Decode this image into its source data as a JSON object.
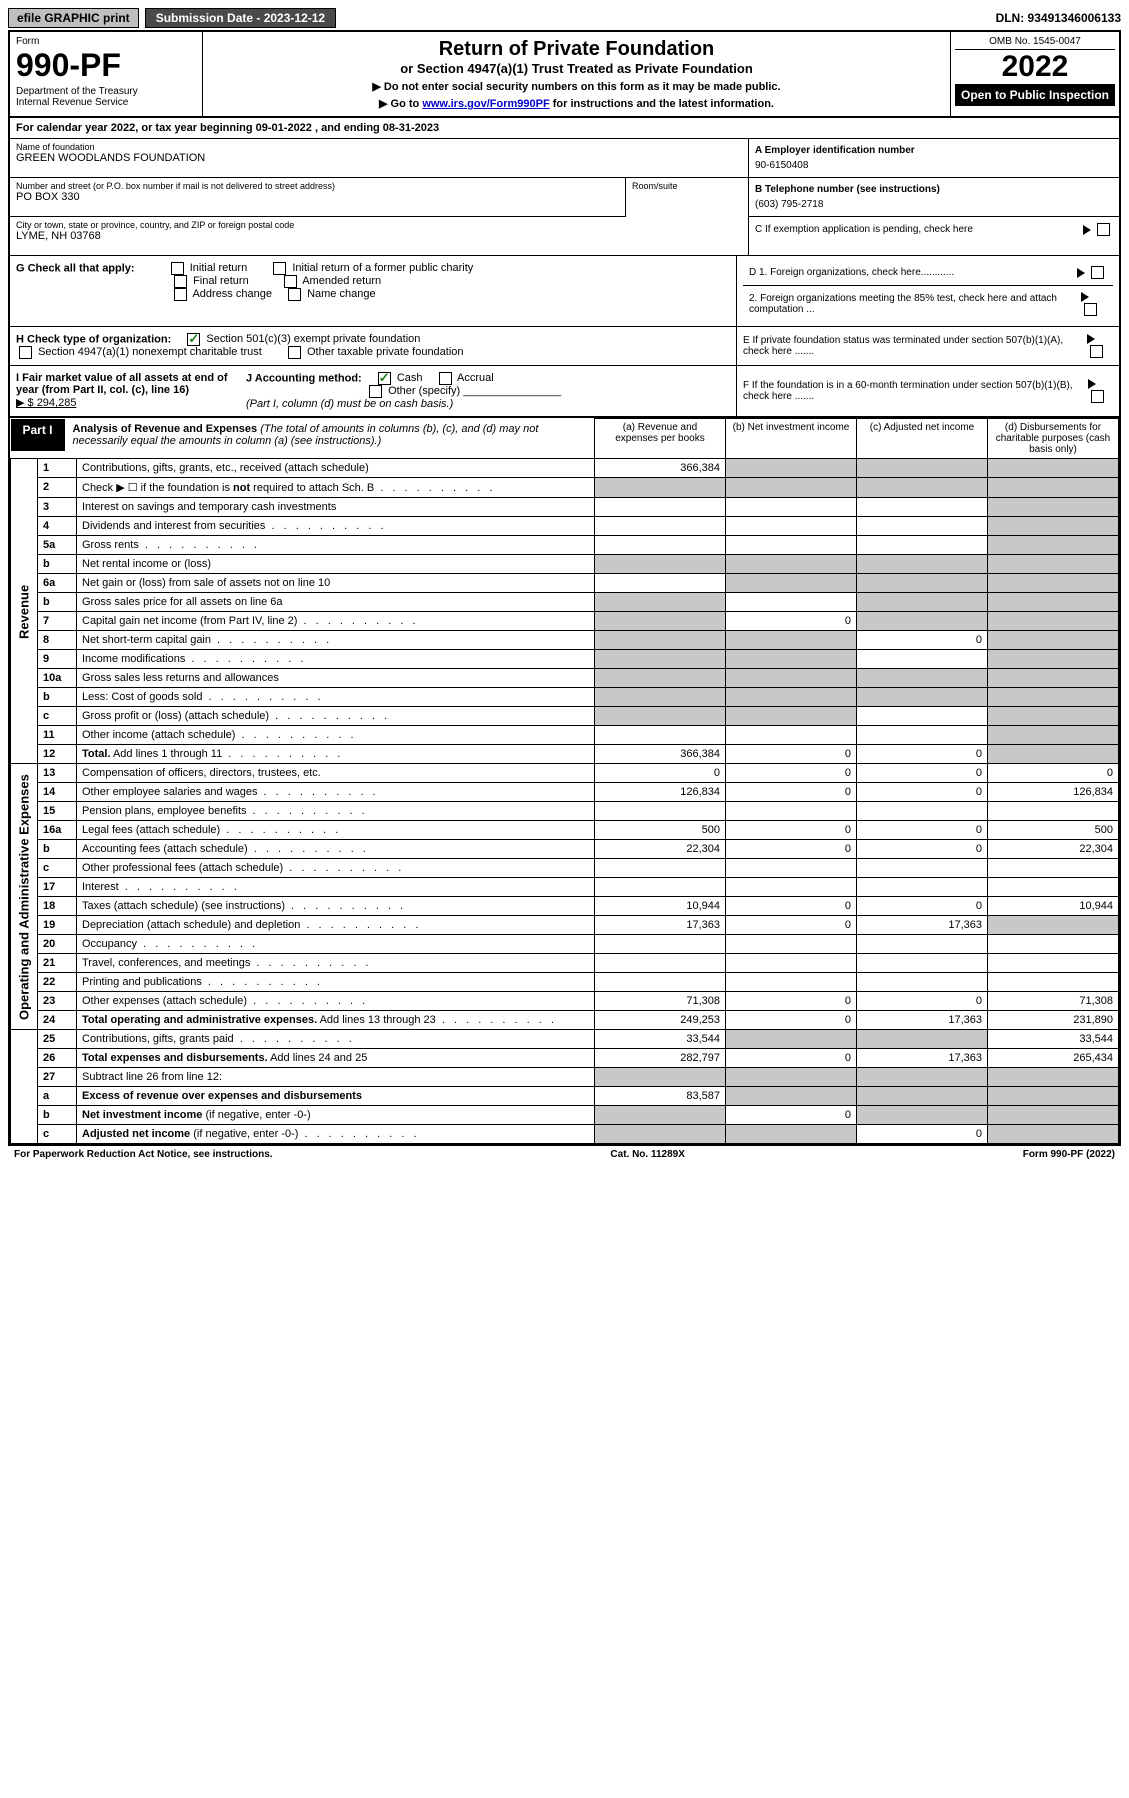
{
  "topbar": {
    "efile": "efile GRAPHIC print",
    "submission": "Submission Date - 2023-12-12",
    "dln": "DLN: 93491346006133"
  },
  "header": {
    "form_word": "Form",
    "form_number": "990-PF",
    "dept": "Department of the Treasury\nInternal Revenue Service",
    "title": "Return of Private Foundation",
    "subtitle": "or Section 4947(a)(1) Trust Treated as Private Foundation",
    "instr1": "▶ Do not enter social security numbers on this form as it may be made public.",
    "instr2_pre": "▶ Go to ",
    "instr2_link": "www.irs.gov/Form990PF",
    "instr2_post": " for instructions and the latest information.",
    "omb": "OMB No. 1545-0047",
    "year": "2022",
    "open": "Open to Public Inspection"
  },
  "calyear": "For calendar year 2022, or tax year beginning 09-01-2022              , and ending 08-31-2023",
  "info": {
    "name_label": "Name of foundation",
    "name": "GREEN WOODLANDS FOUNDATION",
    "addr_label": "Number and street (or P.O. box number if mail is not delivered to street address)",
    "addr": "PO BOX 330",
    "room_label": "Room/suite",
    "city_label": "City or town, state or province, country, and ZIP or foreign postal code",
    "city": "LYME, NH  03768",
    "a_label": "A Employer identification number",
    "a_val": "90-6150408",
    "b_label": "B Telephone number (see instructions)",
    "b_val": "(603) 795-2718",
    "c_label": "C If exemption application is pending, check here"
  },
  "checks": {
    "g_label": "G Check all that apply:",
    "g_opts": [
      "Initial return",
      "Initial return of a former public charity",
      "Final return",
      "Amended return",
      "Address change",
      "Name change"
    ],
    "h_label": "H Check type of organization:",
    "h_1": "Section 501(c)(3) exempt private foundation",
    "h_2": "Section 4947(a)(1) nonexempt charitable trust",
    "h_3": "Other taxable private foundation",
    "i_label": "I Fair market value of all assets at end of year (from Part II, col. (c), line 16)",
    "i_val": "▶ $  294,285",
    "j_label": "J Accounting method:",
    "j_cash": "Cash",
    "j_accrual": "Accrual",
    "j_other": "Other (specify)",
    "j_note": "(Part I, column (d) must be on cash basis.)",
    "d1": "D 1. Foreign organizations, check here............",
    "d2": "2. Foreign organizations meeting the 85% test, check here and attach computation ...",
    "e": "E  If private foundation status was terminated under section 507(b)(1)(A), check here .......",
    "f": "F  If the foundation is in a 60-month termination under section 507(b)(1)(B), check here ......."
  },
  "part1": {
    "label": "Part I",
    "title": "Analysis of Revenue and Expenses",
    "note": "(The total of amounts in columns (b), (c), and (d) may not necessarily equal the amounts in column (a) (see instructions).)",
    "col_a": "(a)   Revenue and expenses per books",
    "col_b": "(b)   Net investment income",
    "col_c": "(c)   Adjusted net income",
    "col_d": "(d)   Disbursements for charitable purposes (cash basis only)"
  },
  "sections": {
    "revenue": "Revenue",
    "opex": "Operating and Administrative Expenses"
  },
  "rows": [
    {
      "n": "1",
      "d": "Contributions, gifts, grants, etc., received (attach schedule)",
      "a": "366,384",
      "b": "~",
      "c": "~",
      "dd": "~"
    },
    {
      "n": "2",
      "d": "Check ▶ ☐ if the foundation is <b>not</b> required to attach Sch. B",
      "a": "~",
      "b": "~",
      "c": "~",
      "dd": "~",
      "dots": true
    },
    {
      "n": "3",
      "d": "Interest on savings and temporary cash investments",
      "a": "",
      "b": "",
      "c": "",
      "dd": "~"
    },
    {
      "n": "4",
      "d": "Dividends and interest from securities",
      "a": "",
      "b": "",
      "c": "",
      "dd": "~",
      "dots": true
    },
    {
      "n": "5a",
      "d": "Gross rents",
      "a": "",
      "b": "",
      "c": "",
      "dd": "~",
      "dots": true
    },
    {
      "n": "b",
      "d": "Net rental income or (loss)",
      "a": "~",
      "b": "~",
      "c": "~",
      "dd": "~",
      "inset": true
    },
    {
      "n": "6a",
      "d": "Net gain or (loss) from sale of assets not on line 10",
      "a": "",
      "b": "~",
      "c": "~",
      "dd": "~"
    },
    {
      "n": "b",
      "d": "Gross sales price for all assets on line 6a",
      "a": "~",
      "b": "",
      "c": "~",
      "dd": "~",
      "inset": true
    },
    {
      "n": "7",
      "d": "Capital gain net income (from Part IV, line 2)",
      "a": "~",
      "b": "0",
      "c": "~",
      "dd": "~",
      "dots": true
    },
    {
      "n": "8",
      "d": "Net short-term capital gain",
      "a": "~",
      "b": "~",
      "c": "0",
      "dd": "~",
      "dots": true
    },
    {
      "n": "9",
      "d": "Income modifications",
      "a": "~",
      "b": "~",
      "c": "",
      "dd": "~",
      "dots": true
    },
    {
      "n": "10a",
      "d": "Gross sales less returns and allowances",
      "a": "~",
      "b": "~",
      "c": "~",
      "dd": "~",
      "inset": true
    },
    {
      "n": "b",
      "d": "Less: Cost of goods sold",
      "a": "~",
      "b": "~",
      "c": "~",
      "dd": "~",
      "inset": true,
      "dots": true
    },
    {
      "n": "c",
      "d": "Gross profit or (loss) (attach schedule)",
      "a": "~",
      "b": "~",
      "c": "",
      "dd": "~",
      "dots": true
    },
    {
      "n": "11",
      "d": "Other income (attach schedule)",
      "a": "",
      "b": "",
      "c": "",
      "dd": "~",
      "dots": true
    },
    {
      "n": "12",
      "d": "<b>Total.</b> Add lines 1 through 11",
      "a": "366,384",
      "b": "0",
      "c": "0",
      "dd": "~",
      "dots": true,
      "bold": true
    },
    {
      "n": "13",
      "d": "Compensation of officers, directors, trustees, etc.",
      "a": "0",
      "b": "0",
      "c": "0",
      "dd": "0"
    },
    {
      "n": "14",
      "d": "Other employee salaries and wages",
      "a": "126,834",
      "b": "0",
      "c": "0",
      "dd": "126,834",
      "dots": true
    },
    {
      "n": "15",
      "d": "Pension plans, employee benefits",
      "a": "",
      "b": "",
      "c": "",
      "dd": "",
      "dots": true
    },
    {
      "n": "16a",
      "d": "Legal fees (attach schedule)",
      "a": "500",
      "b": "0",
      "c": "0",
      "dd": "500",
      "dots": true
    },
    {
      "n": "b",
      "d": "Accounting fees (attach schedule)",
      "a": "22,304",
      "b": "0",
      "c": "0",
      "dd": "22,304",
      "dots": true
    },
    {
      "n": "c",
      "d": "Other professional fees (attach schedule)",
      "a": "",
      "b": "",
      "c": "",
      "dd": "",
      "dots": true
    },
    {
      "n": "17",
      "d": "Interest",
      "a": "",
      "b": "",
      "c": "",
      "dd": "",
      "dots": true
    },
    {
      "n": "18",
      "d": "Taxes (attach schedule) (see instructions)",
      "a": "10,944",
      "b": "0",
      "c": "0",
      "dd": "10,944",
      "dots": true
    },
    {
      "n": "19",
      "d": "Depreciation (attach schedule) and depletion",
      "a": "17,363",
      "b": "0",
      "c": "17,363",
      "dd": "~",
      "dots": true
    },
    {
      "n": "20",
      "d": "Occupancy",
      "a": "",
      "b": "",
      "c": "",
      "dd": "",
      "dots": true
    },
    {
      "n": "21",
      "d": "Travel, conferences, and meetings",
      "a": "",
      "b": "",
      "c": "",
      "dd": "",
      "dots": true
    },
    {
      "n": "22",
      "d": "Printing and publications",
      "a": "",
      "b": "",
      "c": "",
      "dd": "",
      "dots": true
    },
    {
      "n": "23",
      "d": "Other expenses (attach schedule)",
      "a": "71,308",
      "b": "0",
      "c": "0",
      "dd": "71,308",
      "dots": true
    },
    {
      "n": "24",
      "d": "<b>Total operating and administrative expenses.</b> Add lines 13 through 23",
      "a": "249,253",
      "b": "0",
      "c": "17,363",
      "dd": "231,890",
      "dots": true
    },
    {
      "n": "25",
      "d": "Contributions, gifts, grants paid",
      "a": "33,544",
      "b": "~",
      "c": "~",
      "dd": "33,544",
      "dots": true
    },
    {
      "n": "26",
      "d": "<b>Total expenses and disbursements.</b> Add lines 24 and 25",
      "a": "282,797",
      "b": "0",
      "c": "17,363",
      "dd": "265,434"
    },
    {
      "n": "27",
      "d": "Subtract line 26 from line 12:",
      "a": "~",
      "b": "~",
      "c": "~",
      "dd": "~"
    },
    {
      "n": "a",
      "d": "<b>Excess of revenue over expenses and disbursements</b>",
      "a": "83,587",
      "b": "~",
      "c": "~",
      "dd": "~"
    },
    {
      "n": "b",
      "d": "<b>Net investment income</b> (if negative, enter -0-)",
      "a": "~",
      "b": "0",
      "c": "~",
      "dd": "~"
    },
    {
      "n": "c",
      "d": "<b>Adjusted net income</b> (if negative, enter -0-)",
      "a": "~",
      "b": "~",
      "c": "0",
      "dd": "~",
      "dots": true
    }
  ],
  "footer": {
    "left": "For Paperwork Reduction Act Notice, see instructions.",
    "mid": "Cat. No. 11289X",
    "right": "Form 990-PF (2022)"
  }
}
